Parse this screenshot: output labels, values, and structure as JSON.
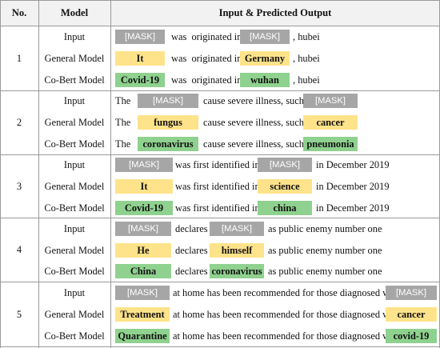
{
  "header": {
    "col_no": "No.",
    "col_model": "Model",
    "col_output": "Input & Predicted Output"
  },
  "mask_token": "[MASK]",
  "groups": [
    {
      "no": "1",
      "rows": [
        {
          "model": "Input",
          "t1": "[MASK]",
          "mid": "was  originated in",
          "t2": "[MASK]",
          "end": ", hubei"
        },
        {
          "model": "General Model",
          "t1": "It",
          "mid": "was  originated in",
          "t2": "Germany",
          "end": ", hubei"
        },
        {
          "model": "Co-Bert Model",
          "t1": "Covid-19",
          "mid": "was  originated in",
          "t2": "wuhan",
          "end": ", hubei"
        }
      ]
    },
    {
      "no": "2",
      "rows": [
        {
          "model": "Input",
          "pre": "The",
          "t1": "[MASK]",
          "mid": "cause severe illness, such as",
          "t2": "[MASK]",
          "end": ""
        },
        {
          "model": "General Model",
          "pre": "The",
          "t1": "fungus",
          "mid": "cause severe illness, such as",
          "t2": "cancer",
          "end": ""
        },
        {
          "model": "Co-Bert Model",
          "pre": "The",
          "t1": "coronavirus",
          "mid": "cause severe illness, such as",
          "t2": "pneumonia",
          "end": ""
        }
      ]
    },
    {
      "no": "3",
      "rows": [
        {
          "model": "Input",
          "t1": "[MASK]",
          "mid": "was first identified in",
          "t2": "[MASK]",
          "end": "in December 2019"
        },
        {
          "model": "General Model",
          "t1": "It",
          "mid": "was first identified in",
          "t2": "science",
          "end": "in December 2019"
        },
        {
          "model": "Co-Bert Model",
          "t1": "Covid-19",
          "mid": "was first identified in",
          "t2": "china",
          "end": "in December 2019"
        }
      ]
    },
    {
      "no": "4",
      "rows": [
        {
          "model": "Input",
          "t1": "[MASK]",
          "mid": "declares",
          "t2": "[MASK]",
          "end": "as public enemy number one"
        },
        {
          "model": "General Model",
          "t1": "He",
          "mid": "declares",
          "t2": "himself",
          "end": "as public enemy number one"
        },
        {
          "model": "Co-Bert Model",
          "t1": "China",
          "mid": "declares",
          "t2": "coronavirus",
          "end": "as public enemy number one"
        }
      ]
    },
    {
      "no": "5",
      "rows": [
        {
          "model": "Input",
          "t1": "[MASK]",
          "mid": "at home has been recommended for those diagnosed with",
          "t2": "[MASK]",
          "end": ""
        },
        {
          "model": "General Model",
          "t1": "Treatment",
          "mid": "at home has been recommended for those diagnosed with",
          "t2": "cancer",
          "end": ""
        },
        {
          "model": "Co-Bert Model",
          "t1": "Quarantine",
          "mid": "at home has been recommended for those diagnosed with",
          "t2": "covid-19",
          "end": ""
        }
      ]
    }
  ],
  "colors": {
    "mask": "#a6a6a6",
    "general": "#ffe38a",
    "cobert": "#8fd18f",
    "grid": "#9a9a9a",
    "header_bg": "#f2f2f2"
  }
}
